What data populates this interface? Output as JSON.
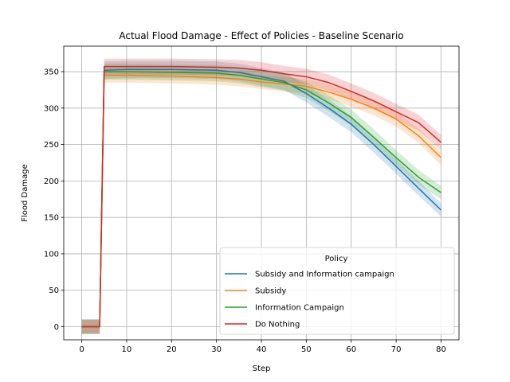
{
  "chart_data": {
    "type": "line",
    "title": "Actual Flood Damage - Effect of Policies - Baseline Scenario",
    "xlabel": "Step",
    "ylabel": "Flood Damage",
    "xlim": [
      -4,
      84
    ],
    "ylim": [
      -18,
      385
    ],
    "xticks": [
      0,
      10,
      20,
      30,
      40,
      50,
      60,
      70,
      80
    ],
    "yticks": [
      0,
      50,
      100,
      150,
      200,
      250,
      300,
      350
    ],
    "grid": true,
    "legend": {
      "title": "Policy",
      "placement": "lower-right"
    },
    "x": [
      0,
      4,
      5,
      10,
      20,
      30,
      35,
      40,
      45,
      50,
      55,
      60,
      65,
      70,
      75,
      80
    ],
    "series": [
      {
        "name": "Subsidy and Information campaign",
        "color": "#1f77b4",
        "values": [
          0,
          0,
          352,
          353,
          353,
          352,
          349,
          343,
          337,
          320,
          300,
          278,
          250,
          220,
          190,
          160
        ],
        "band": [
          10,
          10,
          12,
          12,
          12,
          12,
          12,
          12,
          12,
          12,
          12,
          11,
          11,
          10,
          10,
          9
        ]
      },
      {
        "name": "Subsidy",
        "color": "#ff7f0e",
        "values": [
          0,
          0,
          345,
          345,
          344,
          342,
          340,
          336,
          333,
          330,
          322,
          312,
          300,
          285,
          262,
          232
        ],
        "band": [
          9,
          9,
          10,
          10,
          10,
          10,
          10,
          10,
          10,
          10,
          10,
          10,
          10,
          10,
          10,
          10
        ]
      },
      {
        "name": "Information Campaign",
        "color": "#2ca02c",
        "values": [
          0,
          0,
          350,
          350,
          349,
          348,
          345,
          340,
          335,
          325,
          307,
          287,
          260,
          232,
          205,
          184
        ],
        "band": [
          10,
          10,
          11,
          11,
          11,
          11,
          11,
          11,
          11,
          11,
          11,
          11,
          11,
          10,
          10,
          9
        ]
      },
      {
        "name": "Do Nothing",
        "color": "#d62728",
        "values": [
          0,
          0,
          357,
          357,
          357,
          356,
          355,
          352,
          347,
          343,
          335,
          323,
          310,
          295,
          280,
          253
        ],
        "band": [
          10,
          10,
          11,
          11,
          11,
          11,
          11,
          11,
          11,
          11,
          11,
          11,
          11,
          11,
          11,
          10
        ]
      }
    ]
  }
}
